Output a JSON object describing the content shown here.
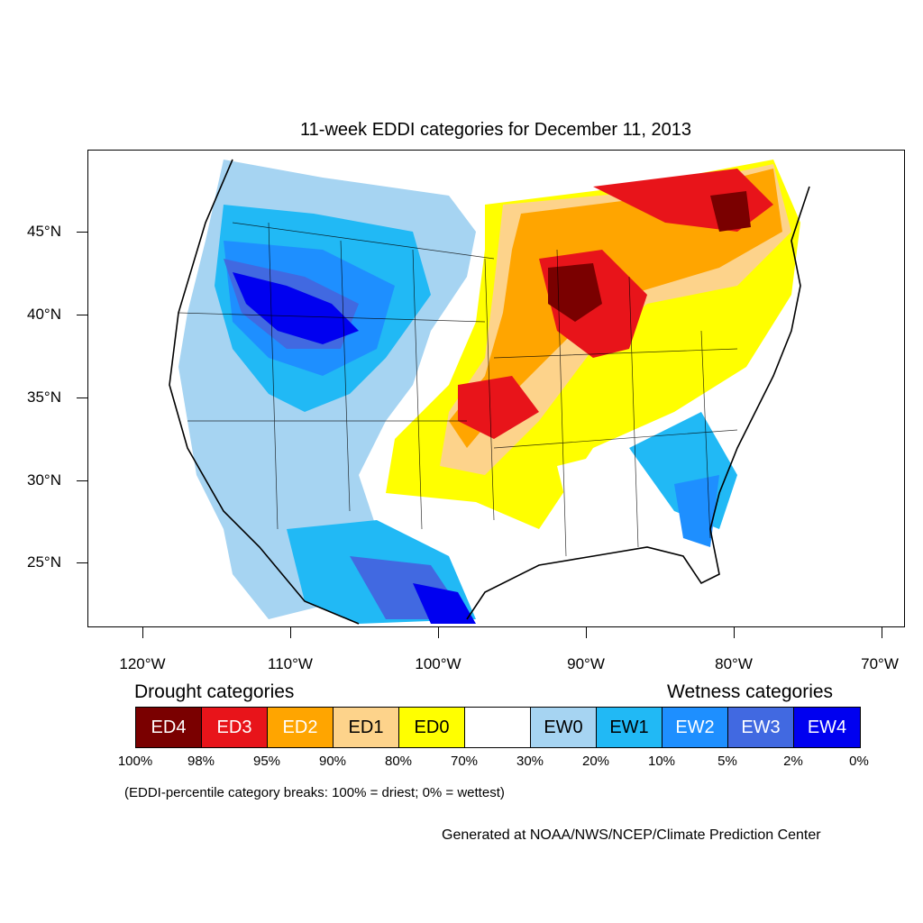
{
  "title": "11-week EDDI categories for December 11, 2013",
  "axes": {
    "y_labels": [
      "45°N",
      "40°N",
      "35°N",
      "30°N",
      "25°N"
    ],
    "x_labels": [
      "120°W",
      "110°W",
      "100°W",
      "90°W",
      "80°W",
      "70°W"
    ]
  },
  "legend": {
    "drought_heading": "Drought categories",
    "wetness_heading": "Wetness categories",
    "categories": [
      {
        "label": "ED4",
        "color": "#7a0000",
        "text_color": "#ffffff"
      },
      {
        "label": "ED3",
        "color": "#e8141a",
        "text_color": "#ffffff"
      },
      {
        "label": "ED2",
        "color": "#ffa500",
        "text_color": "#ffffff"
      },
      {
        "label": "ED1",
        "color": "#fdd38b",
        "text_color": "#000000"
      },
      {
        "label": "ED0",
        "color": "#ffff00",
        "text_color": "#000000"
      },
      {
        "label": "",
        "color": "#ffffff",
        "text_color": "#000000"
      },
      {
        "label": "EW0",
        "color": "#a6d4f2",
        "text_color": "#000000"
      },
      {
        "label": "EW1",
        "color": "#21b9f5",
        "text_color": "#000000"
      },
      {
        "label": "EW2",
        "color": "#1e8fff",
        "text_color": "#ffffff"
      },
      {
        "label": "EW3",
        "color": "#4169e1",
        "text_color": "#ffffff"
      },
      {
        "label": "EW4",
        "color": "#0000f0",
        "text_color": "#ffffff"
      }
    ],
    "breaks": [
      "100%",
      "98%",
      "95%",
      "90%",
      "80%",
      "70%",
      "30%",
      "20%",
      "10%",
      "5%",
      "2%",
      "0%"
    ]
  },
  "note": "(EDDI-percentile category breaks: 100% = driest; 0% = wettest)",
  "credit": "Generated at NOAA/NWS/NCEP/Climate Prediction Center"
}
